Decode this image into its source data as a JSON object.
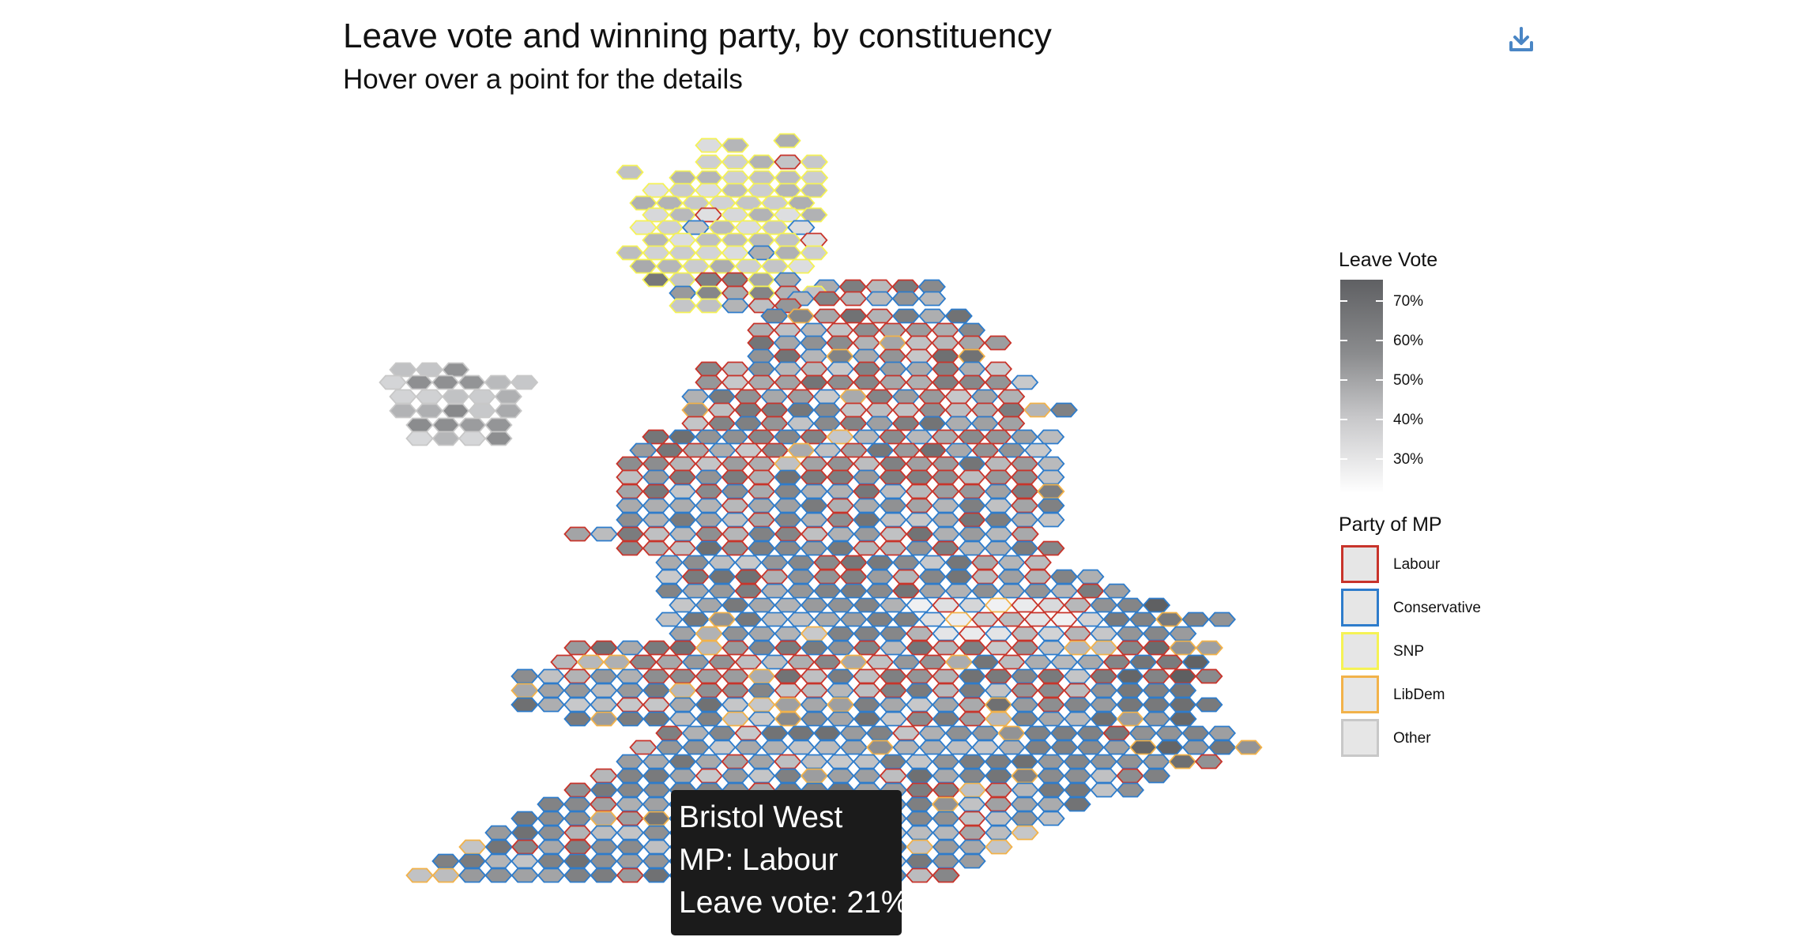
{
  "header": {
    "title": "Leave vote and winning party, by constituency",
    "subtitle": "Hover over a point for the details"
  },
  "toolbar": {
    "download_icon": "download-icon",
    "icon_color": "#4a86c5"
  },
  "legend": {
    "leave_title": "Leave Vote",
    "ticks": [
      "70%",
      "60%",
      "50%",
      "40%",
      "30%"
    ],
    "tick_values": [
      0.7,
      0.6,
      0.5,
      0.4,
      0.3
    ],
    "party_title": "Party of MP",
    "parties": [
      {
        "name": "Labour",
        "color": "#c8342b"
      },
      {
        "name": "Conservative",
        "color": "#2e7ccb"
      },
      {
        "name": "SNP",
        "color": "#f5f255"
      },
      {
        "name": "LibDem",
        "color": "#f2b24a"
      },
      {
        "name": "Other",
        "color": "#c8c8c8"
      }
    ]
  },
  "tooltip": {
    "line1": "Bristol West",
    "line2": "MP: Labour",
    "line3": "Leave vote: 21%"
  },
  "chart_data": {
    "type": "heatmap",
    "title": "Leave vote and winning party, by constituency",
    "subtitle": "Hover over a point for the details",
    "value_label": "Leave Vote",
    "value_range": [
      0.2,
      0.75
    ],
    "value_ticks": [
      0.3,
      0.4,
      0.5,
      0.6,
      0.7
    ],
    "outline_label": "Party of MP",
    "categories": [
      "Labour",
      "Conservative",
      "SNP",
      "LibDem",
      "Other"
    ],
    "highlighted_point": {
      "constituency": "Bristol West",
      "party": "Labour",
      "leave_vote": 0.21
    }
  }
}
